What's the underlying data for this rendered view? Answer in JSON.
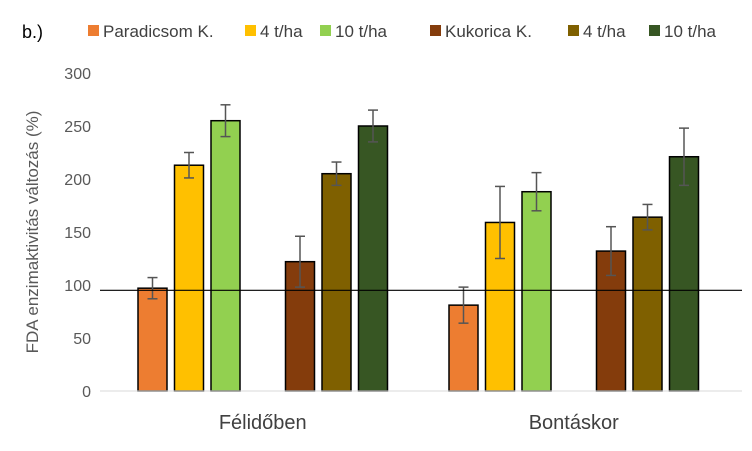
{
  "chart_data": {
    "type": "bar",
    "panel_label": "b.)",
    "ylabel": "FDA enzimaktivitás változás (%)",
    "xlabel": "",
    "ylim": [
      0,
      300
    ],
    "yticks": [
      0,
      50,
      100,
      150,
      200,
      250,
      300
    ],
    "grid": false,
    "legend_position": "top",
    "reference_line": 95,
    "categories": [
      "Félidőben",
      "Bontáskor"
    ],
    "series": [
      {
        "name": "Paradicsom K.",
        "color": "#ED7D31",
        "values": [
          97,
          81
        ],
        "errors": [
          10,
          17
        ]
      },
      {
        "name": "4 t/ha",
        "color": "#FFC000",
        "values": [
          213,
          159
        ],
        "errors": [
          12,
          34
        ]
      },
      {
        "name": "10 t/ha",
        "color": "#92D050",
        "values": [
          255,
          188
        ],
        "errors": [
          15,
          18
        ]
      },
      {
        "name": "Kukorica K.",
        "color": "#843C0C",
        "values": [
          122,
          132
        ],
        "errors": [
          24,
          23
        ]
      },
      {
        "name": "4 t/ha",
        "color": "#7F6000",
        "values": [
          205,
          164
        ],
        "errors": [
          11,
          12
        ]
      },
      {
        "name": "10 t/ha",
        "color": "#375623",
        "values": [
          250,
          221
        ],
        "errors": [
          15,
          27
        ]
      }
    ]
  }
}
